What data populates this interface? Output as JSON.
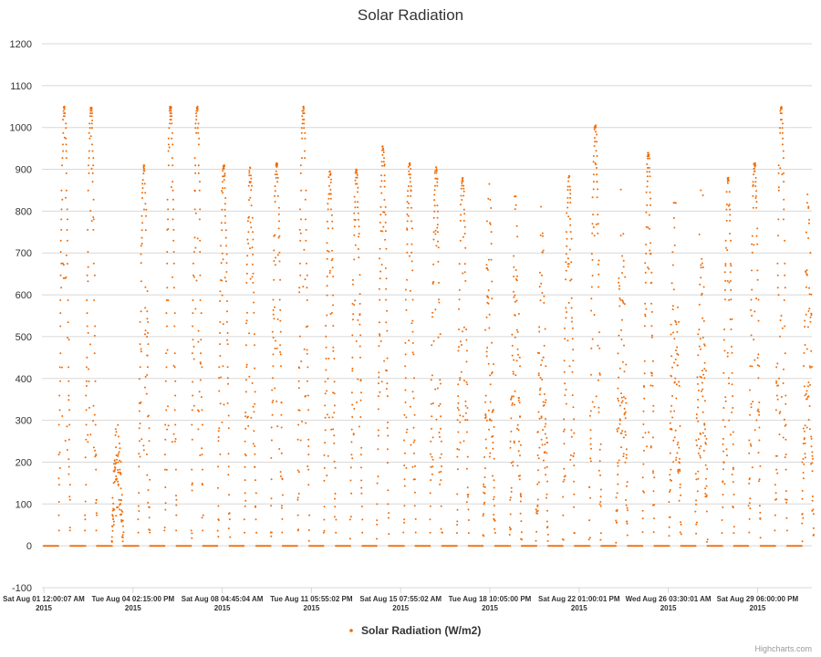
{
  "chart_data": {
    "type": "scatter",
    "title": "Solar Radiation",
    "xlabel": "",
    "ylabel": "",
    "ylim": [
      -100,
      1200
    ],
    "yticks": [
      -100,
      0,
      100,
      200,
      300,
      400,
      500,
      600,
      700,
      800,
      900,
      1000,
      1100,
      1200
    ],
    "grid": true,
    "legend_position": "bottom-center",
    "x_tick_labels": [
      {
        "line1": "Sat Aug 01 12:00:07 AM",
        "line2": "2015"
      },
      {
        "line1": "Tue Aug 04 02:15:00 PM",
        "line2": "2015"
      },
      {
        "line1": "Sat Aug 08 04:45:04 AM",
        "line2": "2015"
      },
      {
        "line1": "Tue Aug 11 05:55:02 PM",
        "line2": "2015"
      },
      {
        "line1": "Sat Aug 15 07:55:02 AM",
        "line2": "2015"
      },
      {
        "line1": "Tue Aug 18 10:05:00 PM",
        "line2": "2015"
      },
      {
        "line1": "Sat Aug 22 01:00:01 PM",
        "line2": "2015"
      },
      {
        "line1": "Wed Aug 26 03:30:01 AM",
        "line2": "2015"
      },
      {
        "line1": "Sat Aug 29 06:00:00 PM",
        "line2": "2015"
      }
    ],
    "series": [
      {
        "name": "Solar Radiation (W/m2)",
        "color": "#f06b06",
        "daily_peaks": [
          1050,
          1050,
          300,
          910,
          1050,
          1050,
          910,
          905,
          915,
          1050,
          895,
          900,
          955,
          915,
          905,
          880,
          865,
          835,
          835,
          885,
          1005,
          865,
          940,
          820,
          850,
          880,
          915,
          1050,
          840
        ]
      }
    ]
  },
  "credits": "Highcharts.com"
}
